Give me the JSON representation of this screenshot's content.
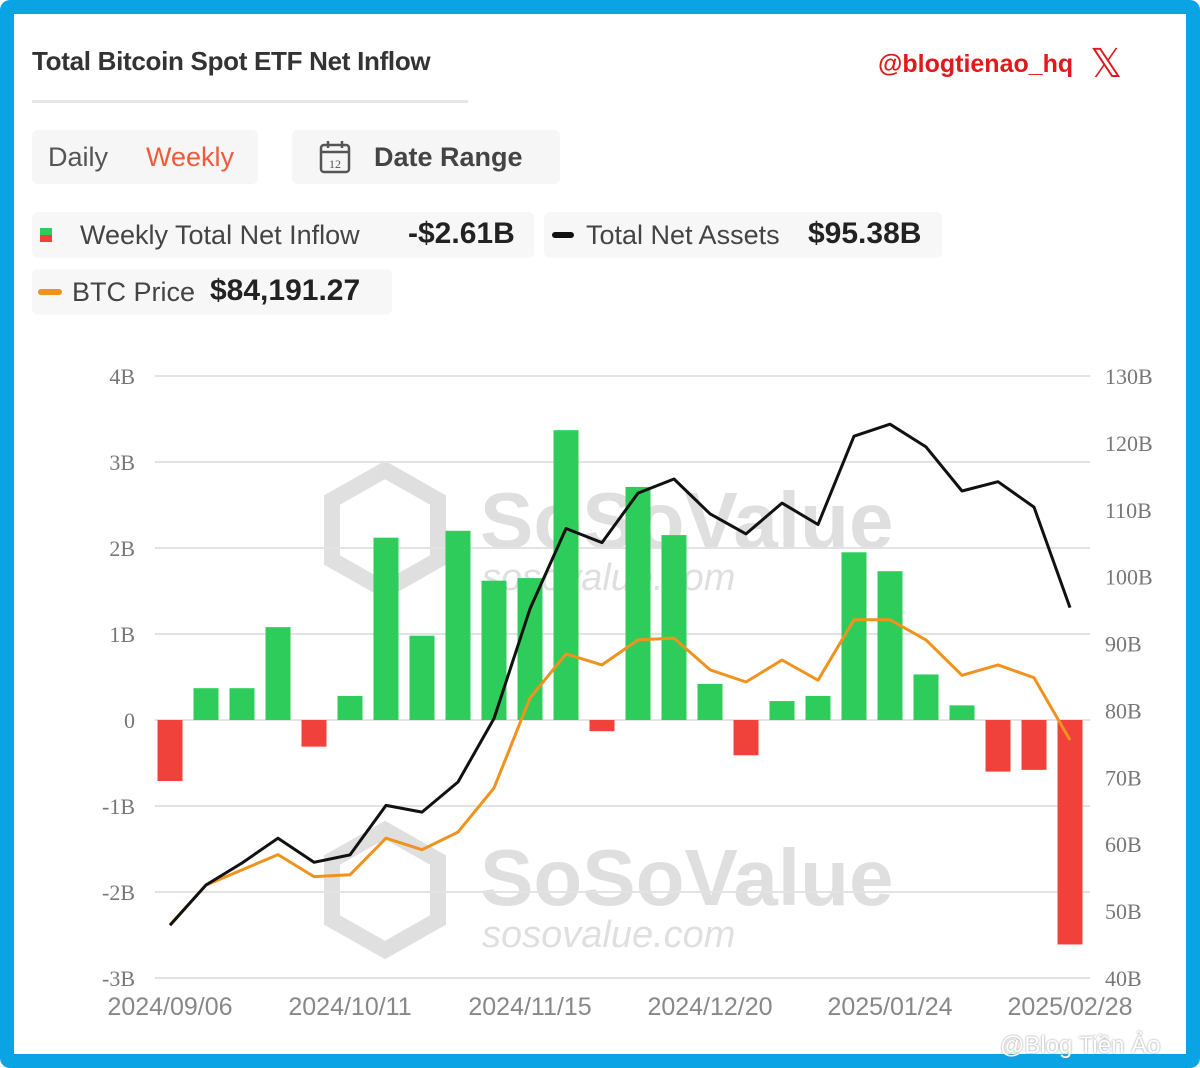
{
  "header": {
    "title": "Total Bitcoin Spot ETF Net Inflow",
    "handle": "@blogtienao_hq",
    "handle_icon": "x-logo-icon"
  },
  "controls": {
    "daily_label": "Daily",
    "weekly_label": "Weekly",
    "active": "Weekly",
    "date_range_label": "Date Range",
    "date_range_icon": "calendar-icon",
    "calendar_day": "12"
  },
  "legend": {
    "inflow_label": "Weekly Total Net Inflow",
    "inflow_value": "-$2.61B",
    "assets_label": "Total Net Assets",
    "assets_value": "$95.38B",
    "price_label": "BTC Price",
    "price_value": "$84,191.27"
  },
  "watermark": {
    "brand": "SoSoValue",
    "site": "sosovalue.com"
  },
  "credit": "@Blog Tiền Ảo",
  "colors": {
    "positive": "#2ecc5a",
    "negative": "#f0413a",
    "assets": "#111111",
    "price": "#f0931e",
    "accent": "#f05a3c",
    "frame": "#0aa3e4"
  },
  "chart_data": {
    "type": "bar+line",
    "x": [
      "2024/09/06",
      "2024/09/13",
      "2024/09/20",
      "2024/09/27",
      "2024/10/04",
      "2024/10/11",
      "2024/10/18",
      "2024/10/25",
      "2024/11/01",
      "2024/11/08",
      "2024/11/15",
      "2024/11/22",
      "2024/11/29",
      "2024/12/06",
      "2024/12/13",
      "2024/12/20",
      "2024/12/27",
      "2025/01/03",
      "2025/01/10",
      "2025/01/17",
      "2025/01/24",
      "2025/01/31",
      "2025/02/07",
      "2025/02/14",
      "2025/02/21",
      "2025/02/28"
    ],
    "x_tick_labels": [
      "2024/09/06",
      "2024/10/11",
      "2024/11/15",
      "2024/12/20",
      "2025/01/24",
      "2025/02/28"
    ],
    "left_axis": {
      "ticks": [
        "4B",
        "3B",
        "2B",
        "1B",
        "0",
        "-1B",
        "-2B",
        "-3B"
      ],
      "range": [
        -3,
        4
      ],
      "unit": "B USD"
    },
    "right_axis": {
      "ticks": [
        "130B",
        "120B",
        "110B",
        "100B",
        "90B",
        "80B",
        "70B",
        "60B",
        "50B",
        "40B"
      ],
      "range": [
        40,
        130
      ],
      "unit": "B USD"
    },
    "grid": true,
    "series": [
      {
        "name": "Weekly Total Net Inflow",
        "type": "bar",
        "axis": "left",
        "values": [
          -0.71,
          0.37,
          0.37,
          1.08,
          -0.31,
          0.28,
          2.12,
          0.98,
          2.2,
          1.62,
          1.65,
          3.37,
          -0.13,
          2.71,
          2.15,
          0.42,
          -0.41,
          0.22,
          0.28,
          1.95,
          1.73,
          0.53,
          0.17,
          -0.6,
          -0.58,
          -2.61
        ]
      },
      {
        "name": "Total Net Assets",
        "type": "line",
        "axis": "right",
        "values": [
          47.9,
          53.9,
          57.2,
          60.9,
          57.3,
          58.4,
          65.8,
          64.8,
          69.3,
          78.8,
          95.2,
          107.2,
          105.1,
          112.5,
          114.6,
          109.4,
          106.4,
          111.0,
          107.8,
          121.0,
          122.8,
          119.4,
          112.8,
          114.2,
          110.4,
          95.38
        ]
      },
      {
        "name": "BTC Price",
        "type": "line",
        "axis": "hidden",
        "unit": "USD",
        "values": [
          53900,
          60400,
          62900,
          65400,
          61800,
          62100,
          68100,
          66200,
          69100,
          76300,
          91100,
          98300,
          96500,
          100600,
          100900,
          95700,
          93700,
          97300,
          94000,
          103900,
          103900,
          100600,
          94800,
          96500,
          94400,
          84191.27
        ]
      }
    ]
  }
}
